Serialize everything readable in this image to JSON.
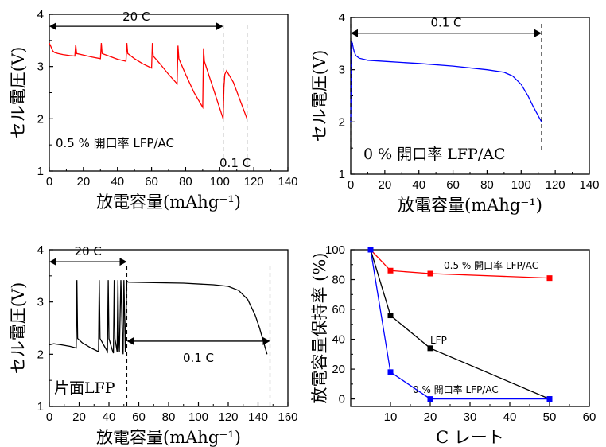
{
  "chart_data": [
    {
      "type": "line",
      "panel": "top-left",
      "xlabel": "放電容量(mAhg⁻¹)",
      "ylabel": "セル電圧(V)",
      "xlim": [
        0,
        140
      ],
      "ylim": [
        1,
        4
      ],
      "x_ticks": [
        "0",
        "20",
        "40",
        "60",
        "80",
        "100",
        "120",
        "140"
      ],
      "y_ticks": [
        "1",
        "2",
        "3",
        "4"
      ],
      "color": "#ff0000",
      "series": [
        {
          "x": [
            0,
            1,
            2,
            3,
            5,
            8,
            12,
            15,
            15.5,
            16,
            20,
            25,
            30,
            30.5,
            31,
            35,
            40,
            45,
            45.5,
            46,
            50,
            55,
            60,
            60.5,
            61,
            65,
            70,
            75,
            75.5,
            76,
            80,
            85,
            90,
            90.5,
            91,
            94,
            97,
            100,
            102,
            102.5,
            103,
            104,
            108,
            112,
            116
          ],
          "y": [
            3.45,
            3.38,
            3.3,
            3.27,
            3.25,
            3.23,
            3.21,
            3.2,
            3.42,
            3.25,
            3.22,
            3.18,
            3.15,
            3.45,
            3.25,
            3.2,
            3.14,
            3.1,
            3.45,
            3.25,
            3.15,
            3.05,
            2.97,
            3.45,
            3.2,
            3.05,
            2.85,
            2.67,
            3.4,
            3.15,
            2.85,
            2.5,
            2.22,
            3.35,
            3.1,
            2.8,
            2.5,
            2.2,
            2.0,
            2.6,
            2.85,
            2.92,
            2.7,
            2.35,
            2.0
          ]
        }
      ],
      "annotations": [
        {
          "text": "20 C",
          "arrow_from_x": 0,
          "arrow_to_x": 102,
          "y": 3.77
        },
        {
          "text": "0.5 % 開口率 LFP/AC"
        },
        {
          "text": "0.1 C"
        }
      ],
      "dashed_lines_x": [
        102,
        116
      ]
    },
    {
      "type": "line",
      "panel": "top-right",
      "xlabel": "放電容量(mAhg⁻¹)",
      "ylabel": "セル電圧(V)",
      "xlim": [
        0,
        140
      ],
      "ylim": [
        1,
        4
      ],
      "x_ticks": [
        "0",
        "20",
        "40",
        "60",
        "80",
        "100",
        "120",
        "140"
      ],
      "y_ticks": [
        "1",
        "2",
        "3",
        "4"
      ],
      "color": "#0000ff",
      "series": [
        {
          "x": [
            0,
            0.5,
            1,
            1.5,
            2,
            3,
            5,
            10,
            20,
            40,
            60,
            80,
            90,
            95,
            100,
            104,
            107,
            110,
            112
          ],
          "y": [
            2.0,
            3.55,
            3.5,
            3.42,
            3.35,
            3.27,
            3.22,
            3.18,
            3.16,
            3.12,
            3.07,
            3.0,
            2.95,
            2.88,
            2.72,
            2.5,
            2.3,
            2.12,
            2.0
          ]
        }
      ],
      "annotations": [
        {
          "text": "0.1 C",
          "arrow_from_x": 0,
          "arrow_to_x": 112,
          "y": 3.7
        },
        {
          "text": "0 % 開口率 LFP/AC"
        }
      ],
      "dashed_lines_x": [
        0,
        112
      ]
    },
    {
      "type": "line",
      "panel": "bottom-left",
      "xlabel": "放電容量(mAhg⁻¹)",
      "ylabel": "セル電圧(V)",
      "xlim": [
        0,
        160
      ],
      "ylim": [
        1,
        4
      ],
      "x_ticks": [
        "0",
        "20",
        "40",
        "60",
        "80",
        "100",
        "120",
        "140",
        "160"
      ],
      "y_ticks": [
        "1",
        "2",
        "3",
        "4"
      ],
      "color": "#000000",
      "series": [
        {
          "x": [
            0,
            3,
            8,
            14,
            18,
            18.5,
            19,
            22,
            28,
            33,
            33.5,
            34,
            37,
            39,
            39.5,
            40,
            42,
            43,
            43.5,
            44,
            45.5,
            46,
            46.5,
            47,
            48,
            49,
            49.5,
            50,
            51,
            52,
            53,
            70,
            90,
            110,
            120,
            127,
            133,
            138,
            141,
            144,
            146
          ],
          "y": [
            2.18,
            2.2,
            2.18,
            2.15,
            2.12,
            3.42,
            2.3,
            2.22,
            2.12,
            2.05,
            3.42,
            2.3,
            2.15,
            2.05,
            3.42,
            2.3,
            2.1,
            2.02,
            3.42,
            2.3,
            2.05,
            3.42,
            2.3,
            2.05,
            3.42,
            2.3,
            2.0,
            3.42,
            2.05,
            3.4,
            3.38,
            3.37,
            3.36,
            3.33,
            3.3,
            3.22,
            3.05,
            2.75,
            2.5,
            2.2,
            2.0
          ]
        }
      ],
      "annotations": [
        {
          "text": "20 C",
          "arrow_from_x": 0,
          "arrow_to_x": 52,
          "y": 3.77
        },
        {
          "text": "片面LFP"
        },
        {
          "text": "0.1 C",
          "arrow_from_x": 52,
          "arrow_to_x": 148,
          "y": 2.25
        }
      ],
      "dashed_lines_x": [
        52,
        148
      ]
    },
    {
      "type": "line",
      "panel": "bottom-right",
      "xlabel": "C レート",
      "ylabel": "放電容量保持率 (%)",
      "xlim": [
        0,
        60
      ],
      "ylim": [
        -5,
        100
      ],
      "x_ticks": [
        "10",
        "20",
        "30",
        "40",
        "50",
        "60"
      ],
      "y_ticks": [
        "0",
        "20",
        "40",
        "60",
        "80",
        "100"
      ],
      "series": [
        {
          "label": "0.5 % 開口率 LFP/AC",
          "color": "#ff0000",
          "x": [
            5,
            10,
            20,
            50
          ],
          "y": [
            100,
            86,
            84,
            81
          ]
        },
        {
          "label": "LFP",
          "color": "#000000",
          "x": [
            5,
            10,
            20,
            50
          ],
          "y": [
            100,
            56,
            34,
            0
          ]
        },
        {
          "label": "0 % 開口率 LFP/AC",
          "color": "#0000ff",
          "x": [
            5,
            10,
            20,
            50
          ],
          "y": [
            100,
            18,
            0,
            0
          ]
        }
      ]
    }
  ]
}
